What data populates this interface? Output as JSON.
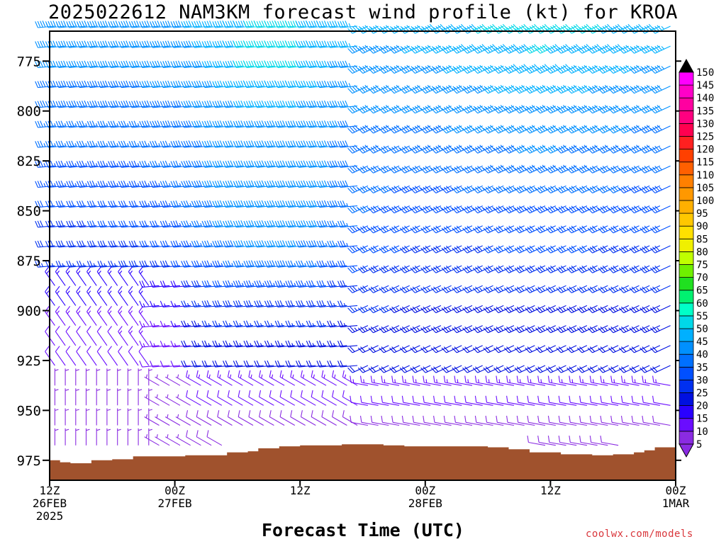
{
  "title": "2025022612 NAM3KM forecast wind profile (kt) for KROA",
  "xlabel": "Forecast Time (UTC)",
  "credit": "coolwx.com/models",
  "colors": {
    "terrain": "#a0522d",
    "axis": "#000000",
    "credit": "#d9363b"
  },
  "chart_data": {
    "type": "wind_barb_profile",
    "title": "2025022612 NAM3KM forecast wind profile (kt) for KROA",
    "xlabel": "Forecast Time (UTC)",
    "ylabel": "",
    "x_range_hours": [
      0,
      60
    ],
    "y_range_mb": [
      985,
      760
    ],
    "y_ticks": [
      {
        "value": 775,
        "label": "775"
      },
      {
        "value": 800,
        "label": "800"
      },
      {
        "value": 825,
        "label": "825"
      },
      {
        "value": 850,
        "label": "850"
      },
      {
        "value": 875,
        "label": "875"
      },
      {
        "value": 900,
        "label": "900"
      },
      {
        "value": 925,
        "label": "925"
      },
      {
        "value": 950,
        "label": "950"
      },
      {
        "value": 975,
        "label": "975"
      }
    ],
    "x_ticks": [
      {
        "hour": 0,
        "lines": [
          "12Z",
          "26FEB",
          "2025"
        ]
      },
      {
        "hour": 12,
        "lines": [
          "00Z",
          "27FEB"
        ]
      },
      {
        "hour": 24,
        "lines": [
          "12Z"
        ]
      },
      {
        "hour": 36,
        "lines": [
          "00Z",
          "28FEB"
        ]
      },
      {
        "hour": 48,
        "lines": [
          "12Z"
        ]
      },
      {
        "hour": 60,
        "lines": [
          "00Z",
          "1MAR"
        ]
      }
    ],
    "colorbar": {
      "levels": [
        5,
        10,
        15,
        20,
        25,
        30,
        35,
        40,
        45,
        50,
        55,
        60,
        65,
        70,
        75,
        80,
        85,
        90,
        95,
        100,
        105,
        110,
        115,
        120,
        125,
        130,
        135,
        140,
        145,
        150
      ],
      "labels": [
        "5",
        "10",
        "15",
        "20",
        "25",
        "30",
        "35",
        "40",
        "45",
        "50",
        "55",
        "60",
        "65",
        "70",
        "75",
        "80",
        "85",
        "90",
        "95",
        "100",
        "105",
        "110",
        "115",
        "120",
        "125",
        "130",
        "135",
        "140",
        "145",
        "150"
      ],
      "colors": [
        "#8a2be2",
        "#6a0dff",
        "#2a00ff",
        "#0010e0",
        "#0030f0",
        "#0050ff",
        "#0070ff",
        "#0090ff",
        "#00b0ff",
        "#00d8e8",
        "#00ffc8",
        "#00f070",
        "#20e020",
        "#70f000",
        "#c0ff00",
        "#f0f000",
        "#ffe000",
        "#ffc800",
        "#ffb000",
        "#ff9800",
        "#ff8000",
        "#ff6000",
        "#ff4000",
        "#ff2020",
        "#ff0050",
        "#ff0080",
        "#ff00a0",
        "#ff00c8",
        "#ff00ff"
      ]
    },
    "surface_pressure_mb": [
      [
        0,
        975
      ],
      [
        1,
        976
      ],
      [
        2,
        976.5
      ],
      [
        4,
        975
      ],
      [
        6,
        974.5
      ],
      [
        8,
        973
      ],
      [
        11,
        973
      ],
      [
        13,
        972.5
      ],
      [
        16,
        972.5
      ],
      [
        17,
        971
      ],
      [
        19,
        970.5
      ],
      [
        20,
        969
      ],
      [
        22,
        968
      ],
      [
        24,
        967.5
      ],
      [
        26,
        967.5
      ],
      [
        28,
        967
      ],
      [
        30,
        967
      ],
      [
        32,
        967.5
      ],
      [
        34,
        968
      ],
      [
        36,
        968
      ],
      [
        38,
        968
      ],
      [
        40,
        968
      ],
      [
        42,
        968.5
      ],
      [
        44,
        969.5
      ],
      [
        46,
        971
      ],
      [
        49,
        972
      ],
      [
        52,
        972.5
      ],
      [
        54,
        972
      ],
      [
        56,
        971
      ],
      [
        57,
        970
      ],
      [
        58,
        968.5
      ],
      [
        60,
        967
      ]
    ]
  }
}
